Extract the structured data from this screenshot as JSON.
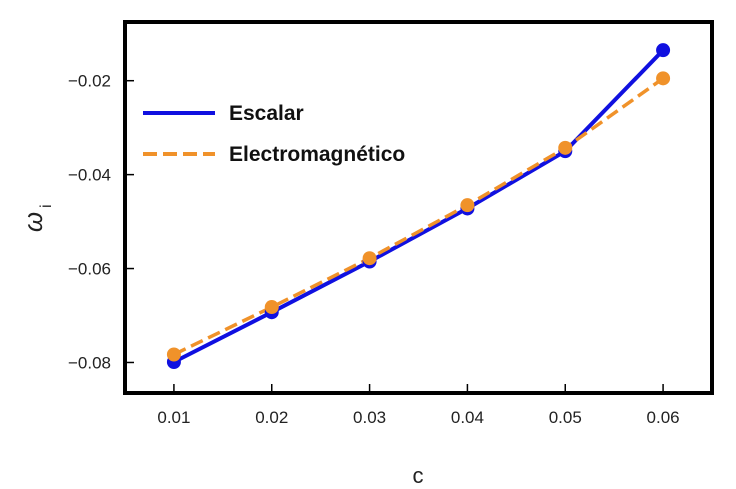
{
  "chart_data": {
    "type": "line",
    "title": "",
    "xlabel": "c",
    "ylabel": "ω",
    "ylabel_subscript": "i",
    "x": [
      0.01,
      0.02,
      0.03,
      0.04,
      0.05,
      0.06
    ],
    "xlim": [
      0.005,
      0.065
    ],
    "ylim": [
      -0.0865,
      -0.0075
    ],
    "x_ticks": [
      "0.01",
      "0.02",
      "0.03",
      "0.04",
      "0.05",
      "0.06"
    ],
    "y_ticks": [
      "−0.08",
      "−0.06",
      "−0.04",
      "−0.02"
    ],
    "x_tick_values": [
      0.01,
      0.02,
      0.03,
      0.04,
      0.05,
      0.06
    ],
    "y_tick_values": [
      -0.08,
      -0.06,
      -0.04,
      -0.02
    ],
    "grid": false,
    "legend_position": "top-left",
    "series": [
      {
        "name": "Escalar",
        "values": [
          -0.0799,
          -0.0693,
          -0.0585,
          -0.0472,
          -0.035,
          -0.0135
        ],
        "color": "#1010e0",
        "style": "solid"
      },
      {
        "name": "Electromagnético",
        "values": [
          -0.0783,
          -0.0682,
          -0.0578,
          -0.0465,
          -0.0343,
          -0.0195
        ],
        "color": "#f0922a",
        "style": "dashed"
      }
    ]
  }
}
